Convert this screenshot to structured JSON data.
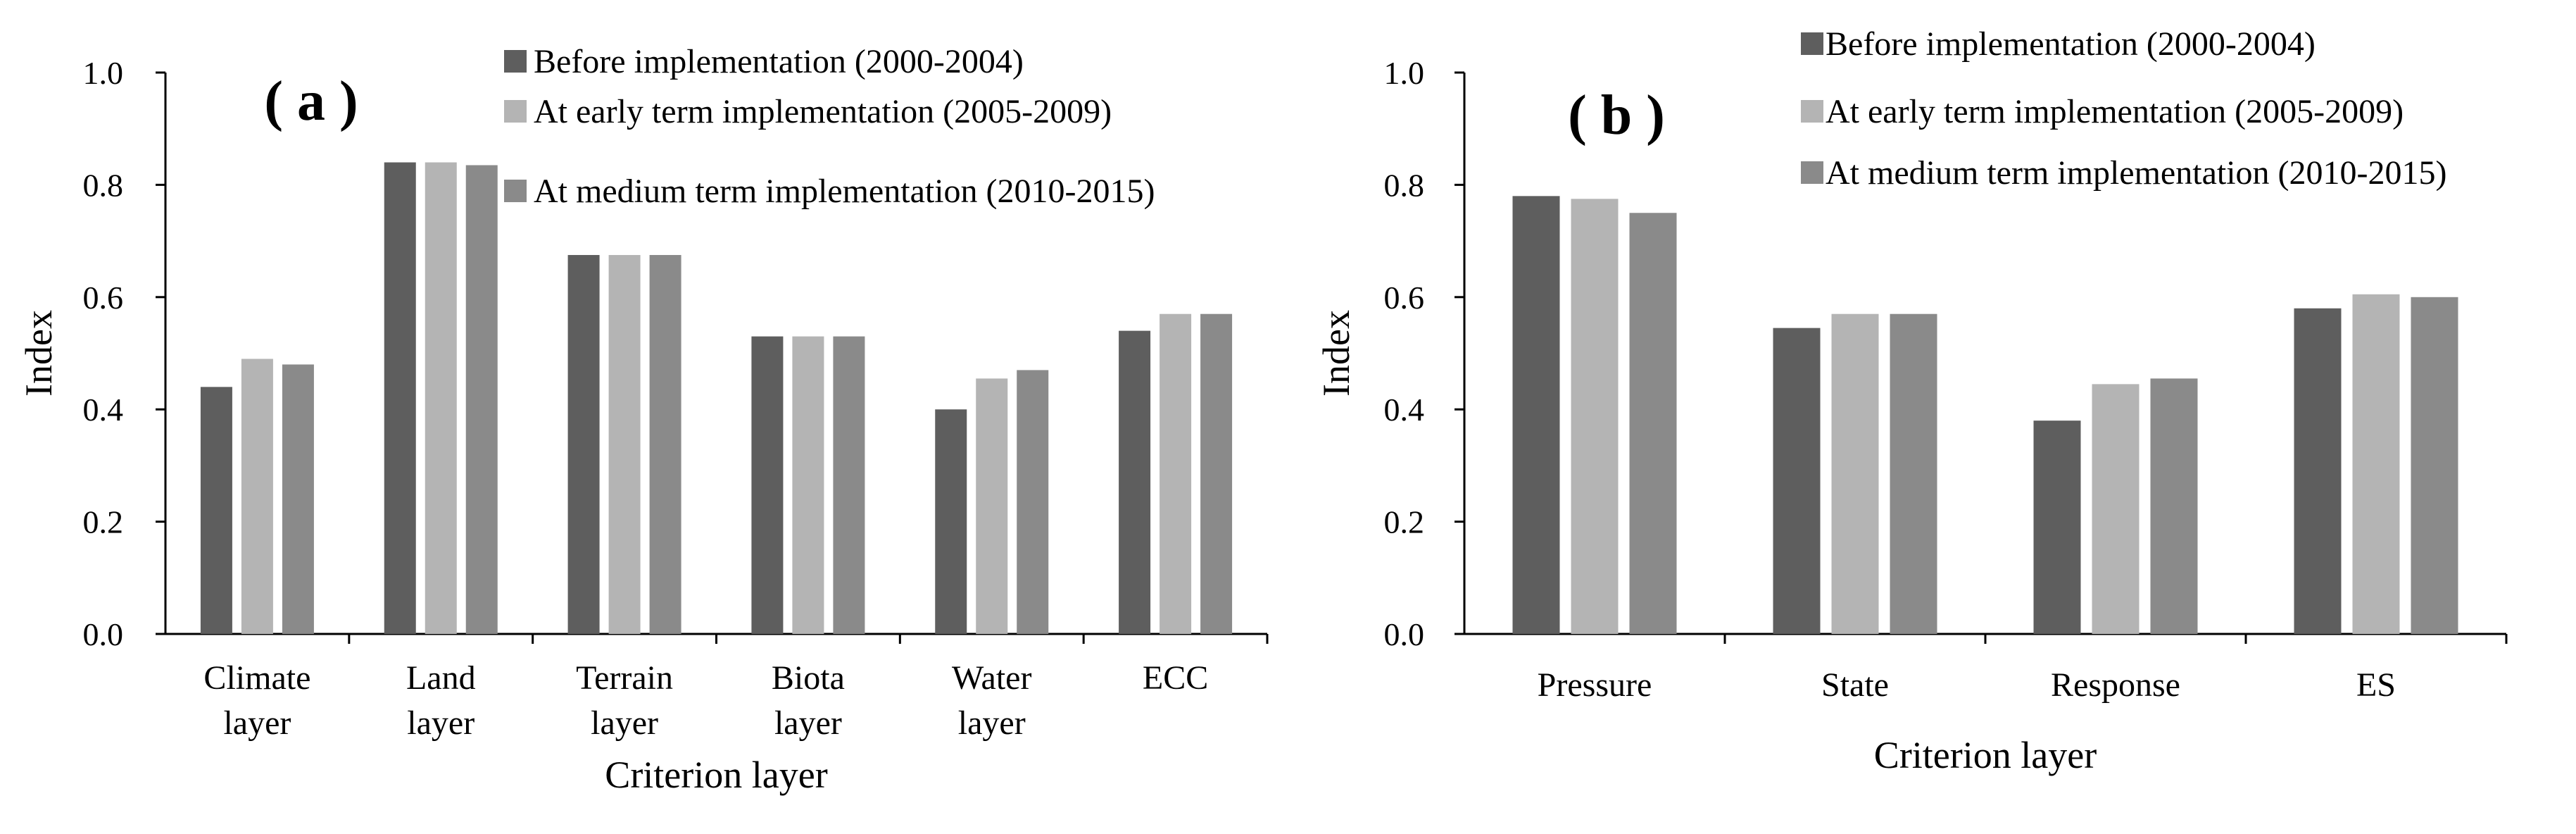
{
  "colors": {
    "before": "#5e5e5e",
    "early": "#b4b4b4",
    "medium": "#8a8a8a",
    "axis": "#000000"
  },
  "chart_data": [
    {
      "type": "bar",
      "panel_label": "( a )",
      "title": "",
      "xlabel": "Criterion layer",
      "ylabel": "Index",
      "ylim": [
        0,
        1.0
      ],
      "yticks": [
        "0.0",
        "0.2",
        "0.4",
        "0.6",
        "0.8",
        "1.0"
      ],
      "categories": [
        [
          "Climate",
          "layer"
        ],
        [
          "Land",
          "layer"
        ],
        [
          "Terrain",
          "layer"
        ],
        [
          "Biota",
          "layer"
        ],
        [
          "Water",
          "layer"
        ],
        [
          "ECC"
        ]
      ],
      "legend": {
        "position": "top-right"
      },
      "series": [
        {
          "name": "Before implementation (2000-2004)",
          "color_key": "before",
          "values": [
            0.44,
            0.84,
            0.675,
            0.53,
            0.4,
            0.54
          ]
        },
        {
          "name": "At early term implementation (2005-2009)",
          "color_key": "early",
          "values": [
            0.49,
            0.84,
            0.675,
            0.53,
            0.455,
            0.57
          ]
        },
        {
          "name": "At medium term implementation (2010-2015)",
          "color_key": "medium",
          "values": [
            0.48,
            0.835,
            0.675,
            0.53,
            0.47,
            0.57
          ]
        }
      ]
    },
    {
      "type": "bar",
      "panel_label": "( b )",
      "title": "",
      "xlabel": "Criterion layer",
      "ylabel": "Index",
      "ylim": [
        0,
        1.0
      ],
      "yticks": [
        "0.0",
        "0.2",
        "0.4",
        "0.6",
        "0.8",
        "1.0"
      ],
      "categories": [
        [
          "Pressure"
        ],
        [
          "State"
        ],
        [
          "Response"
        ],
        [
          "ES"
        ]
      ],
      "legend": {
        "position": "top-right"
      },
      "series": [
        {
          "name": "Before implementation (2000-2004)",
          "color_key": "before",
          "values": [
            0.78,
            0.545,
            0.38,
            0.58
          ]
        },
        {
          "name": "At early term implementation (2005-2009)",
          "color_key": "early",
          "values": [
            0.775,
            0.57,
            0.445,
            0.605
          ]
        },
        {
          "name": "At medium term implementation (2010-2015)",
          "color_key": "medium",
          "values": [
            0.75,
            0.57,
            0.455,
            0.6
          ]
        }
      ]
    }
  ]
}
